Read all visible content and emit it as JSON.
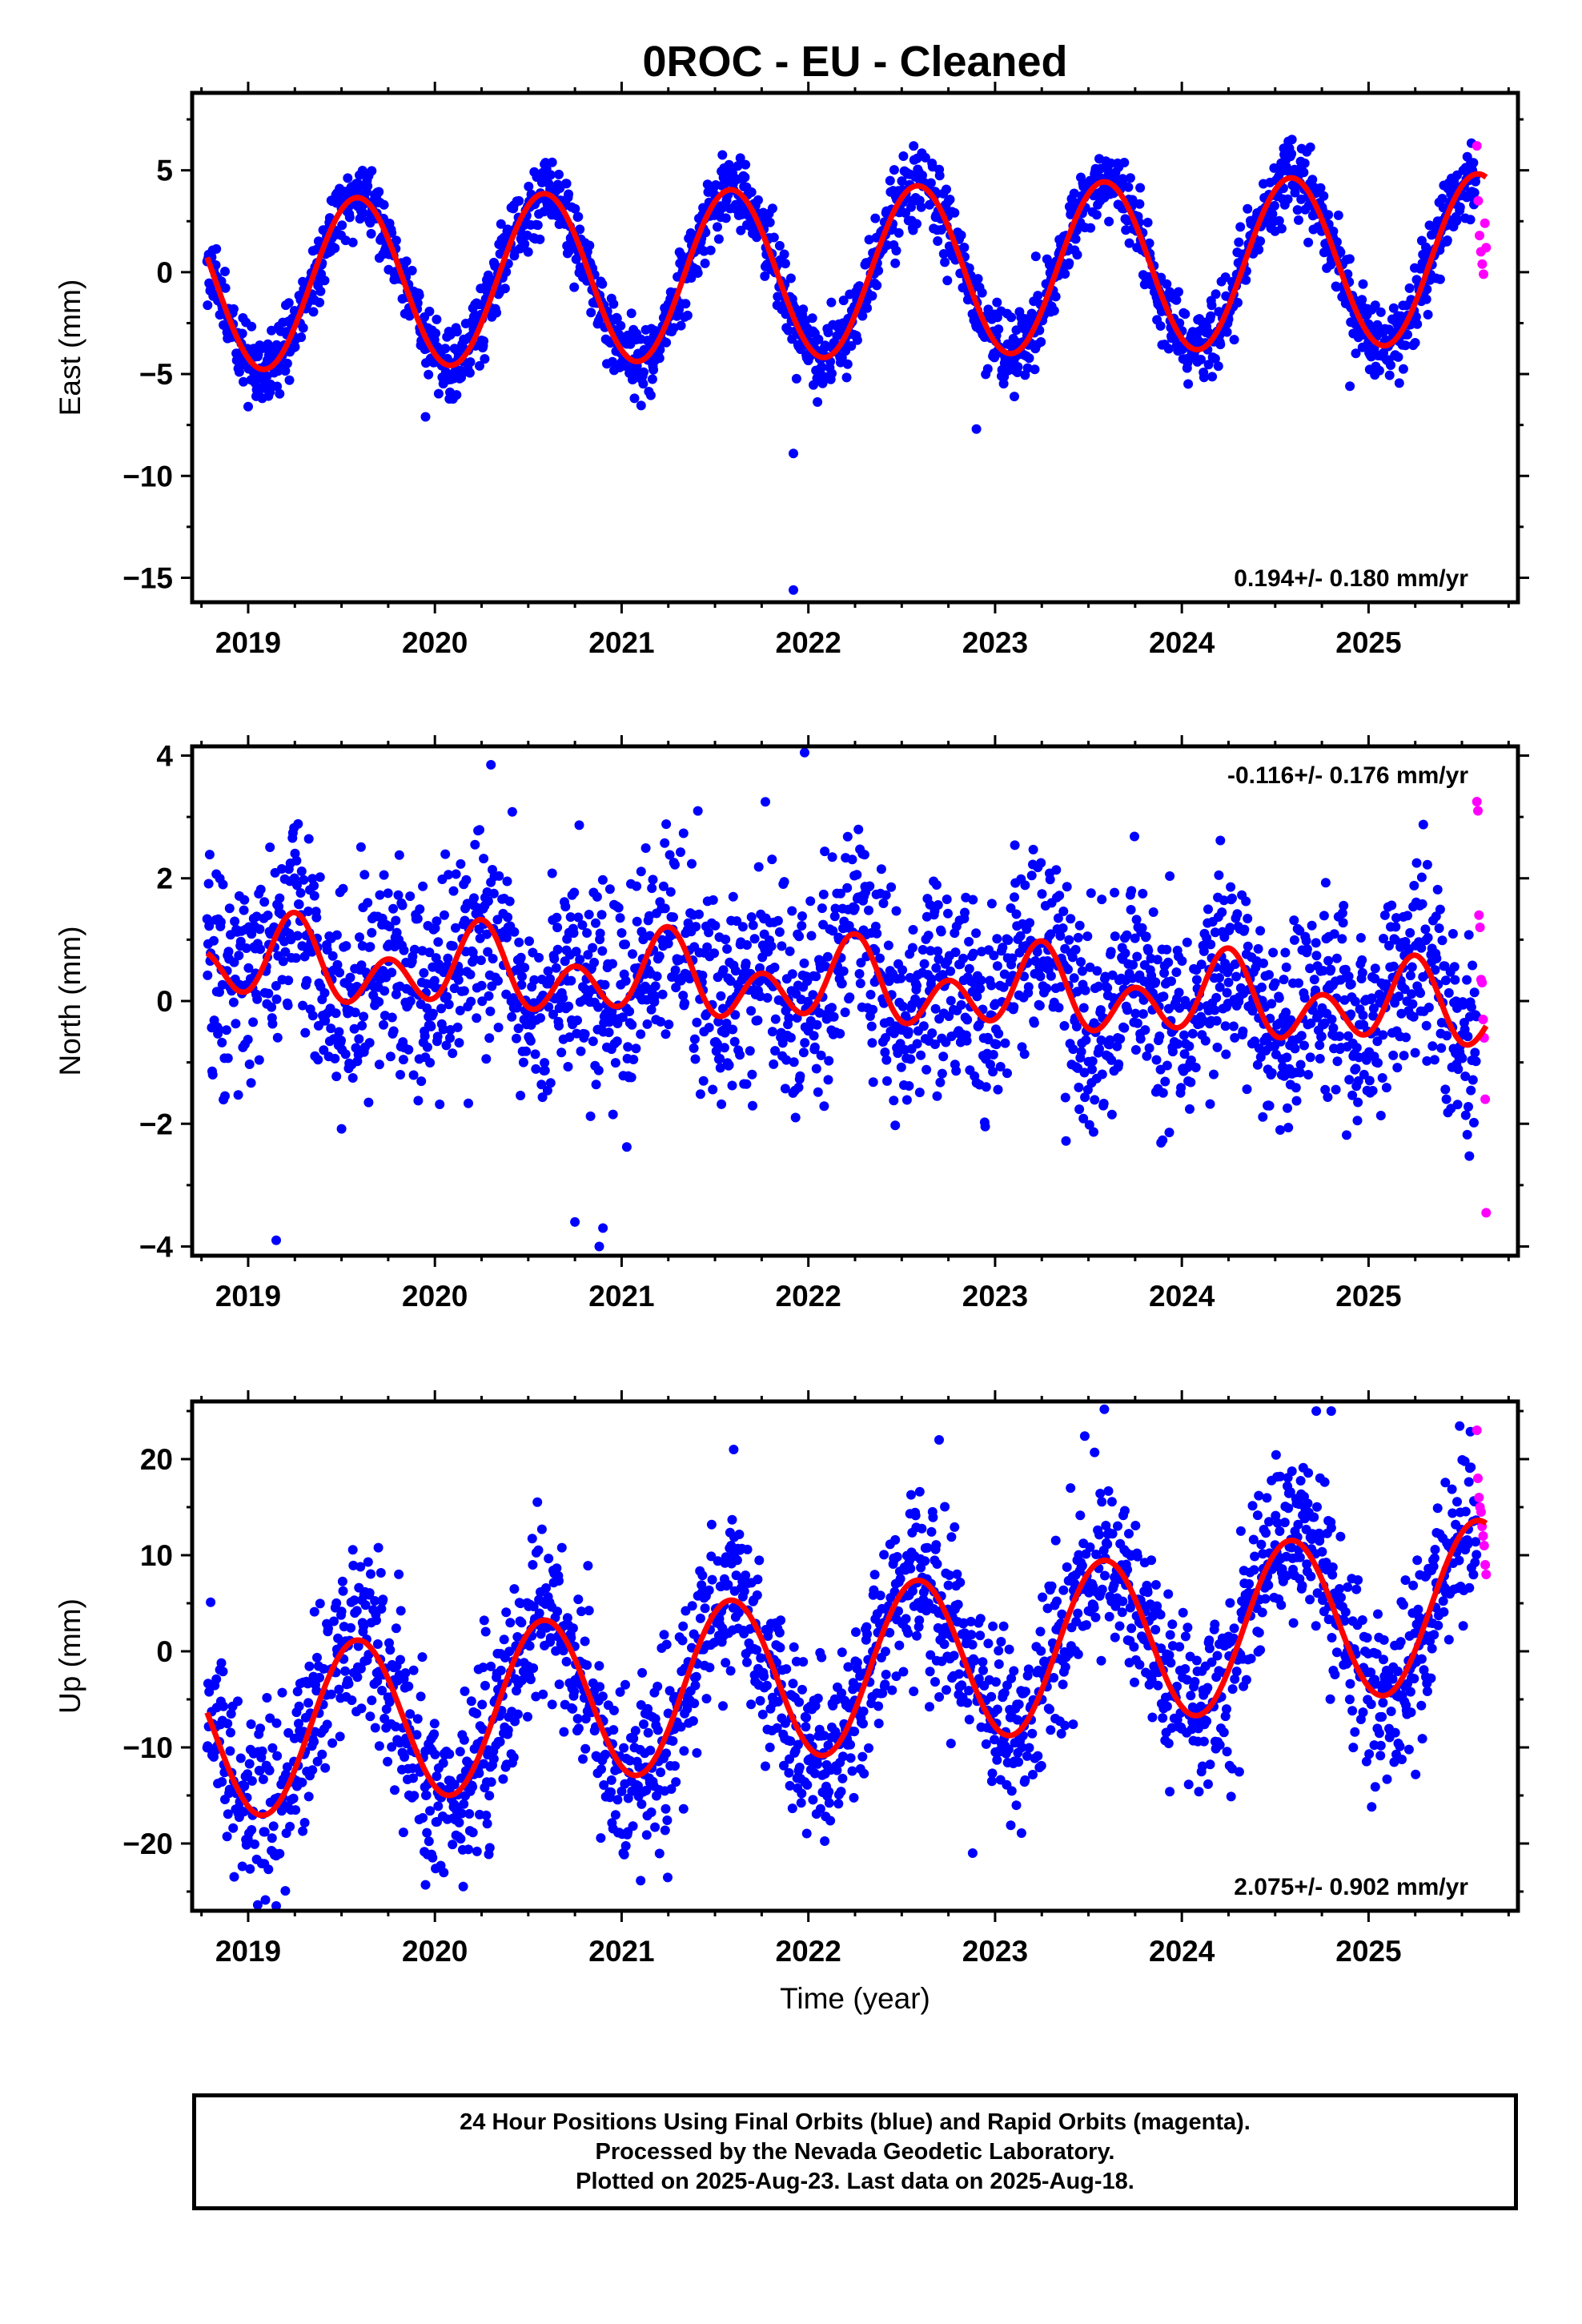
{
  "title": "0ROC  - EU - Cleaned",
  "colors": {
    "final": "#0000ff",
    "rapid": "#ff00ff",
    "model": "#ff0000"
  },
  "chart_data": [
    {
      "type": "scatter",
      "ylabel": "East (mm)",
      "xlabel": "",
      "xlim": [
        2018.7,
        2025.8
      ],
      "ylim": [
        -16.2,
        8.8
      ],
      "xticks": [
        2019,
        2020,
        2021,
        2022,
        2023,
        2024,
        2025
      ],
      "xtick_labels": [
        "2019",
        "2020",
        "2021",
        "2022",
        "2023",
        "2024",
        "2025"
      ],
      "yticks": [
        5,
        0,
        -5,
        -10,
        -15
      ],
      "ytick_labels": [
        "5",
        "0",
        "−5",
        "−10",
        "−15"
      ],
      "rate": "0.194+/- 0.180 mm/yr",
      "rate_position": "bottom-right",
      "data_span": [
        2018.78,
        2025.63
      ],
      "rapid_start": 2025.58,
      "model": {
        "mean": 0.0,
        "trend": 0.194,
        "sin1": -2.1,
        "cos1": -3.6,
        "sin2": 0.0,
        "cos2": 0.0
      },
      "noise": 0.9,
      "rapid_values": [
        6.2,
        3.5,
        1.8,
        1.0,
        0.4,
        -0.1,
        2.4,
        1.2
      ],
      "outliers": [
        [
          2021.92,
          -8.9
        ],
        [
          2021.92,
          -15.6
        ],
        [
          2022.9,
          -7.7
        ],
        [
          2019.0,
          -6.6
        ],
        [
          2019.95,
          -7.1
        ],
        [
          2024.9,
          -5.6
        ]
      ]
    },
    {
      "type": "scatter",
      "ylabel": "North (mm)",
      "xlabel": "",
      "xlim": [
        2018.7,
        2025.8
      ],
      "ylim": [
        -4.15,
        4.15
      ],
      "xticks": [
        2019,
        2020,
        2021,
        2022,
        2023,
        2024,
        2025
      ],
      "xtick_labels": [
        "2019",
        "2020",
        "2021",
        "2022",
        "2023",
        "2024",
        "2025"
      ],
      "yticks": [
        4,
        2,
        0,
        -2,
        -4
      ],
      "ytick_labels": [
        "4",
        "2",
        "0",
        "−2",
        "−4"
      ],
      "rate": "-0.116+/- 0.176 mm/yr",
      "rate_position": "top-right",
      "data_span": [
        2018.78,
        2025.63
      ],
      "rapid_start": 2025.58,
      "model": {
        "mean": 0.25,
        "trend": -0.116,
        "sin1": 0.35,
        "cos1": 0.05,
        "sin2": 0.0,
        "cos2": -0.5
      },
      "noise": 0.85,
      "rapid_values": [
        3.25,
        3.1,
        1.4,
        1.2,
        0.35,
        0.3,
        -0.3,
        -0.6,
        -1.6,
        -3.45
      ],
      "outliers": [
        [
          2020.3,
          3.85
        ],
        [
          2021.98,
          4.05
        ],
        [
          2019.15,
          -3.9
        ],
        [
          2020.88,
          -4.0
        ],
        [
          2020.75,
          -3.6
        ],
        [
          2020.9,
          -3.7
        ]
      ]
    },
    {
      "type": "scatter",
      "ylabel": "Up (mm)",
      "xlabel": "Time (year)",
      "xlim": [
        2018.7,
        2025.8
      ],
      "ylim": [
        -27.0,
        26.0
      ],
      "xticks": [
        2019,
        2020,
        2021,
        2022,
        2023,
        2024,
        2025
      ],
      "xtick_labels": [
        "2019",
        "2020",
        "2021",
        "2022",
        "2023",
        "2024",
        "2025"
      ],
      "yticks": [
        20,
        10,
        0,
        -10,
        -20
      ],
      "ytick_labels": [
        "20",
        "10",
        "0",
        "−10",
        "−20"
      ],
      "rate": "2.075+/- 0.902 mm/yr",
      "rate_position": "bottom-right",
      "data_span": [
        2018.78,
        2025.63
      ],
      "rapid_start": 2025.58,
      "model": {
        "mean": -2.0,
        "trend": 2.075,
        "sin1": -4.2,
        "cos1": -7.5,
        "sin2": 0.0,
        "cos2": 0.0
      },
      "noise": 4.5,
      "rapid_values": [
        23.0,
        18.0,
        16.0,
        15.0,
        14.5,
        13.0,
        12.0,
        11.0,
        9.0,
        8.0
      ],
      "outliers": [
        [
          2019.15,
          -26.5
        ],
        [
          2019.95,
          -24.3
        ],
        [
          2021.6,
          21.0
        ],
        [
          2022.7,
          22.0
        ],
        [
          2023.48,
          22.4
        ],
        [
          2024.72,
          25.0
        ],
        [
          2024.8,
          25.0
        ],
        [
          2022.88,
          -21.0
        ]
      ]
    }
  ],
  "footer": {
    "line1": "24 Hour Positions Using Final Orbits (blue) and Rapid Orbits (magenta).",
    "line2": "Processed by the Nevada Geodetic Laboratory.",
    "line3": "Plotted on 2025-Aug-23. Last data on 2025-Aug-18."
  }
}
